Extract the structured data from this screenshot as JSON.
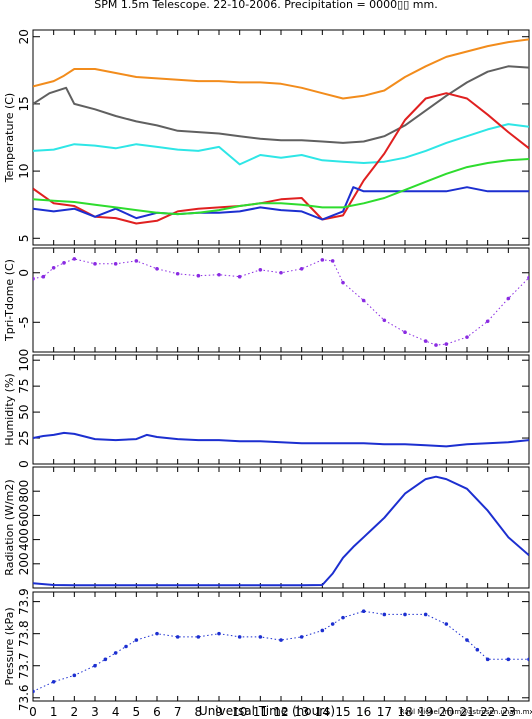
{
  "figure": {
    "title": "SPM 1.5m Telescope. 22-10-2006. Precipitation = 0000▯▯ mm.",
    "xlabel": "Universal Time (hours)",
    "credit": "Raul Michel (rmm@astrosen.unam.mx)",
    "x_ticks": [
      "0",
      "1",
      "2",
      "3",
      "4",
      "5",
      "6",
      "7",
      "8",
      "9",
      "10",
      "11",
      "12",
      "13",
      "14",
      "15",
      "16",
      "17",
      "18",
      "19",
      "20",
      "21",
      "22",
      "23"
    ]
  },
  "chart_data": [
    {
      "type": "line",
      "name": "temperature",
      "ylabel": "Temperature (C)",
      "xlim": [
        0,
        24
      ],
      "ylim": [
        4.5,
        20.5
      ],
      "y_ticks": [
        5,
        10,
        15,
        20
      ],
      "series": [
        {
          "color": "#f28c1c",
          "x": [
            0,
            1,
            1.5,
            2,
            3,
            4,
            5,
            6,
            7,
            8,
            9,
            10,
            11,
            12,
            13,
            14,
            15,
            16,
            17,
            18,
            19,
            20,
            21,
            22,
            23,
            24
          ],
          "y": [
            16.3,
            16.7,
            17.1,
            17.6,
            17.6,
            17.3,
            17.0,
            16.9,
            16.8,
            16.7,
            16.7,
            16.6,
            16.6,
            16.5,
            16.2,
            15.8,
            15.4,
            15.6,
            16.0,
            17.0,
            17.8,
            18.5,
            18.9,
            19.3,
            19.6,
            19.8
          ]
        },
        {
          "color": "#606060",
          "x": [
            0,
            0.8,
            1.6,
            2,
            3,
            4,
            5,
            6,
            7,
            8,
            9,
            10,
            11,
            12,
            13,
            14,
            15,
            16,
            17,
            18,
            19,
            20,
            21,
            22,
            23,
            24
          ],
          "y": [
            15.0,
            15.8,
            16.2,
            15.0,
            14.6,
            14.1,
            13.7,
            13.4,
            13.0,
            12.9,
            12.8,
            12.6,
            12.4,
            12.3,
            12.3,
            12.2,
            12.1,
            12.2,
            12.6,
            13.4,
            14.5,
            15.6,
            16.6,
            17.4,
            17.8,
            17.7
          ]
        },
        {
          "color": "#2ee6e6",
          "x": [
            0,
            1,
            2,
            3,
            4,
            5,
            6,
            7,
            8,
            9,
            10,
            11,
            12,
            13,
            14,
            15,
            16,
            17,
            18,
            19,
            20,
            21,
            22,
            23,
            24
          ],
          "y": [
            11.5,
            11.6,
            12.0,
            11.9,
            11.7,
            12.0,
            11.8,
            11.6,
            11.5,
            11.8,
            10.5,
            11.2,
            11.0,
            11.2,
            10.8,
            10.7,
            10.6,
            10.7,
            11.0,
            11.5,
            12.1,
            12.6,
            13.1,
            13.5,
            13.3
          ]
        },
        {
          "color": "#e02020",
          "x": [
            0,
            1,
            2,
            3,
            4,
            5,
            6,
            7,
            8,
            9,
            10,
            11,
            12,
            13,
            14,
            15,
            15.5,
            16,
            17,
            18,
            19,
            20,
            21,
            22,
            23,
            24
          ],
          "y": [
            8.7,
            7.6,
            7.4,
            6.6,
            6.5,
            6.1,
            6.3,
            7.0,
            7.2,
            7.3,
            7.4,
            7.6,
            7.9,
            8.0,
            6.4,
            6.7,
            8.0,
            9.3,
            11.3,
            13.8,
            15.4,
            15.8,
            15.4,
            14.2,
            12.9,
            11.7
          ]
        },
        {
          "color": "#1c2fd0",
          "x": [
            0,
            1,
            2,
            3,
            4,
            5,
            6,
            7,
            8,
            9,
            10,
            11,
            12,
            13,
            14,
            15,
            15.5,
            16,
            17,
            18,
            19,
            20,
            21,
            22,
            23,
            24
          ],
          "y": [
            7.2,
            7.0,
            7.2,
            6.6,
            7.2,
            6.5,
            6.9,
            6.8,
            6.9,
            6.9,
            7.0,
            7.3,
            7.1,
            7.0,
            6.4,
            7.0,
            8.8,
            8.5,
            8.5,
            8.5,
            8.5,
            8.5,
            8.8,
            8.5,
            8.5,
            8.5
          ]
        },
        {
          "color": "#2edc2e",
          "x": [
            0,
            1,
            2,
            3,
            4,
            5,
            6,
            7,
            8,
            9,
            10,
            11,
            12,
            13,
            14,
            15,
            16,
            17,
            18,
            19,
            20,
            21,
            22,
            23,
            24
          ],
          "y": [
            7.9,
            7.8,
            7.7,
            7.5,
            7.3,
            7.1,
            6.9,
            6.8,
            6.9,
            7.1,
            7.4,
            7.6,
            7.6,
            7.5,
            7.3,
            7.3,
            7.6,
            8.0,
            8.6,
            9.2,
            9.8,
            10.3,
            10.6,
            10.8,
            10.9
          ]
        }
      ]
    },
    {
      "type": "scatter",
      "name": "tpri-tdome",
      "ylabel": "Tpri-Tdome (C)",
      "xlim": [
        0,
        24
      ],
      "ylim": [
        -8,
        2.5
      ],
      "y_ticks": [
        -5,
        0
      ],
      "series": [
        {
          "color": "#8a2be2",
          "x": [
            0,
            0.5,
            1,
            1.5,
            2,
            3,
            4,
            5,
            6,
            7,
            8,
            9,
            10,
            11,
            12,
            13,
            14,
            14.5,
            15,
            16,
            17,
            18,
            19,
            19.5,
            20,
            21,
            22,
            23,
            24
          ],
          "y": [
            -0.6,
            -0.4,
            0.5,
            1.0,
            1.4,
            0.9,
            0.9,
            1.2,
            0.4,
            -0.1,
            -0.3,
            -0.2,
            -0.4,
            0.3,
            0.0,
            0.4,
            1.3,
            1.2,
            -1.0,
            -2.8,
            -4.8,
            -6.0,
            -6.9,
            -7.3,
            -7.2,
            -6.5,
            -4.9,
            -2.6,
            -0.5
          ]
        }
      ]
    },
    {
      "type": "line",
      "name": "humidity",
      "ylabel": "Humidity (%)",
      "xlim": [
        0,
        24
      ],
      "ylim": [
        0,
        105
      ],
      "y_ticks": [
        0,
        25,
        50,
        75,
        100
      ],
      "series": [
        {
          "color": "#1c2fd0",
          "x": [
            0,
            0.5,
            1,
            1.5,
            2,
            3,
            4,
            5,
            5.5,
            6,
            7,
            8,
            9,
            10,
            11,
            12,
            13,
            14,
            15,
            16,
            17,
            18,
            19,
            20,
            21,
            22,
            23,
            24
          ],
          "y": [
            25,
            27,
            28,
            30,
            29,
            24,
            23,
            24,
            28,
            26,
            24,
            23,
            23,
            22,
            22,
            21,
            20,
            20,
            20,
            20,
            19,
            19,
            18,
            17,
            19,
            20,
            21,
            23
          ]
        }
      ]
    },
    {
      "type": "line",
      "name": "radiation",
      "ylabel": "Radiation (W/m2)",
      "xlim": [
        0,
        24
      ],
      "ylim": [
        0,
        1000
      ],
      "y_ticks": [
        200,
        400,
        600,
        800
      ],
      "y_tick_labels": [
        "200",
        "400",
        "600",
        "800"
      ],
      "series": [
        {
          "color": "#1c2fd0",
          "x": [
            0,
            1,
            2,
            3,
            4,
            5,
            6,
            7,
            8,
            9,
            10,
            11,
            12,
            13,
            14,
            14.5,
            15,
            15.5,
            16,
            16.5,
            17,
            18,
            19,
            19.5,
            20,
            21,
            22,
            23,
            24
          ],
          "y": [
            40,
            25,
            22,
            22,
            22,
            22,
            22,
            22,
            22,
            22,
            22,
            22,
            22,
            22,
            25,
            120,
            250,
            340,
            420,
            500,
            580,
            780,
            900,
            920,
            900,
            820,
            640,
            420,
            270
          ]
        }
      ]
    },
    {
      "type": "scatter",
      "name": "pressure",
      "ylabel": "Pressure (kPa)",
      "xlim": [
        0,
        24
      ],
      "ylim": [
        73.59,
        73.93
      ],
      "y_ticks": [
        73.6,
        73.7,
        73.8,
        73.9
      ],
      "series": [
        {
          "color": "#1c2fd0",
          "x": [
            0,
            1,
            2,
            3,
            3.5,
            4,
            4.5,
            5,
            6,
            7,
            8,
            9,
            10,
            11,
            12,
            13,
            14,
            14.5,
            15,
            16,
            17,
            18,
            19,
            20,
            21,
            21.5,
            22,
            23,
            24
          ],
          "y": [
            73.62,
            73.65,
            73.67,
            73.7,
            73.72,
            73.74,
            73.76,
            73.78,
            73.8,
            73.79,
            73.79,
            73.8,
            73.79,
            73.79,
            73.78,
            73.79,
            73.81,
            73.83,
            73.85,
            73.87,
            73.86,
            73.86,
            73.86,
            73.83,
            73.78,
            73.75,
            73.72,
            73.72,
            73.72
          ]
        }
      ]
    }
  ]
}
